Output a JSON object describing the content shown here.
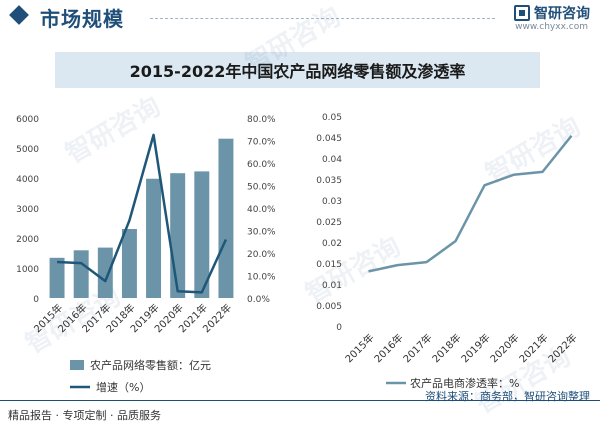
{
  "header": {
    "section_title": "市场规模",
    "logo_text": "智研咨询",
    "logo_url": "www.chyxx.com"
  },
  "title": "2015-2022年中国农产品网络零售额及渗透率",
  "watermark": "智研咨询",
  "footer": {
    "left": "精品报告 · 专项定制 · 品质服务",
    "source": "资料来源：商务部，智研咨询整理"
  },
  "colors": {
    "bar": "#6b94a9",
    "growth_line": "#1f5778",
    "penetration_line": "#6b94a9",
    "brand": "#1f4e79"
  },
  "chart_data": [
    {
      "type": "bar",
      "categories": [
        "2015年",
        "2016年",
        "2017年",
        "2018年",
        "2019年",
        "2020年",
        "2021年",
        "2022年"
      ],
      "series": [
        {
          "name": "农产品网络零售额：亿元",
          "type": "bar",
          "axis": "left",
          "values": [
            1340,
            1590,
            1680,
            2300,
            3975,
            4160,
            4220,
            5310
          ]
        },
        {
          "name": "增速（%）",
          "type": "line",
          "axis": "right",
          "values": [
            16.0,
            15.5,
            7.5,
            34.5,
            72.5,
            3.0,
            2.5,
            26.0
          ]
        }
      ],
      "ylim_left": [
        0,
        6000
      ],
      "yticks_left": [
        "0",
        "1000",
        "2000",
        "3000",
        "4000",
        "5000",
        "6000"
      ],
      "ylim_right": [
        0,
        80
      ],
      "yticks_right": [
        "0.0%",
        "10.0%",
        "20.0%",
        "30.0%",
        "40.0%",
        "50.0%",
        "60.0%",
        "70.0%",
        "80.0%"
      ],
      "legend": "bottom"
    },
    {
      "type": "line",
      "categories": [
        "2015年",
        "2016年",
        "2017年",
        "2018年",
        "2019年",
        "2020年",
        "2021年",
        "2022年"
      ],
      "series": [
        {
          "name": "农产品电商渗透率：%",
          "values": [
            0.013,
            0.0145,
            0.0152,
            0.0202,
            0.0335,
            0.036,
            0.0367,
            0.0453
          ]
        }
      ],
      "ylim": [
        0,
        0.05
      ],
      "yticks": [
        "0",
        "0.005",
        "0.01",
        "0.015",
        "0.02",
        "0.025",
        "0.03",
        "0.035",
        "0.04",
        "0.045",
        "0.05"
      ],
      "legend": "bottom"
    }
  ]
}
